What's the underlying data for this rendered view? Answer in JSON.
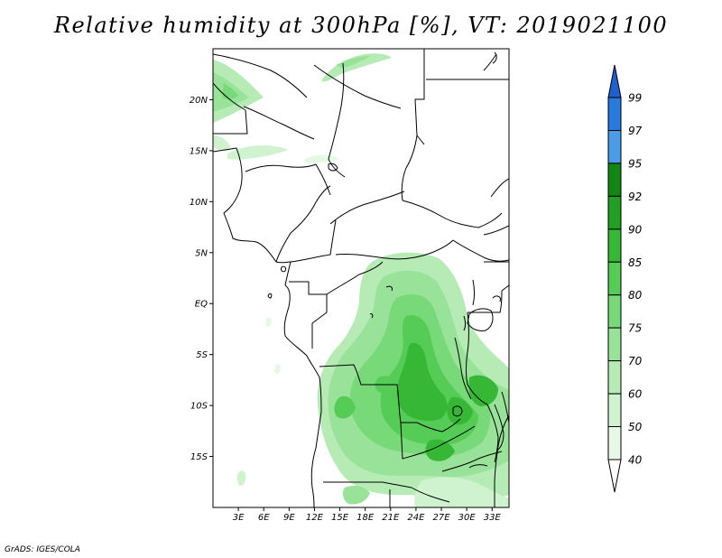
{
  "title": "Relative humidity at 300hPa [%], VT: 2019021100",
  "credit": "GrADS: IGES/COLA",
  "map": {
    "lat_range": [
      -20,
      25
    ],
    "lon_range": [
      0,
      35
    ],
    "lat_ticks": [
      {
        "label": "20N",
        "value": 20
      },
      {
        "label": "15N",
        "value": 15
      },
      {
        "label": "10N",
        "value": 10
      },
      {
        "label": "5N",
        "value": 5
      },
      {
        "label": "EQ",
        "value": 0
      },
      {
        "label": "5S",
        "value": -5
      },
      {
        "label": "10S",
        "value": -10
      },
      {
        "label": "15S",
        "value": -15
      }
    ],
    "lon_ticks": [
      {
        "label": "3E",
        "value": 3
      },
      {
        "label": "6E",
        "value": 6
      },
      {
        "label": "9E",
        "value": 9
      },
      {
        "label": "12E",
        "value": 12
      },
      {
        "label": "15E",
        "value": 15
      },
      {
        "label": "18E",
        "value": 18
      },
      {
        "label": "21E",
        "value": 21
      },
      {
        "label": "24E",
        "value": 24
      },
      {
        "label": "27E",
        "value": 27
      },
      {
        "label": "30E",
        "value": 30
      },
      {
        "label": "33E",
        "value": 33
      }
    ]
  },
  "colorbar": {
    "levels": [
      "99",
      "97",
      "95",
      "92",
      "90",
      "85",
      "80",
      "75",
      "70",
      "60",
      "50",
      "40"
    ],
    "colors": [
      "#1f5fd0",
      "#2a79dc",
      "#4a9be8",
      "#128512",
      "#23a023",
      "#36b836",
      "#55cc55",
      "#77d977",
      "#99e299",
      "#b6ebb6",
      "#cef3ce",
      "#e6f9e6",
      "#ffffff"
    ]
  }
}
